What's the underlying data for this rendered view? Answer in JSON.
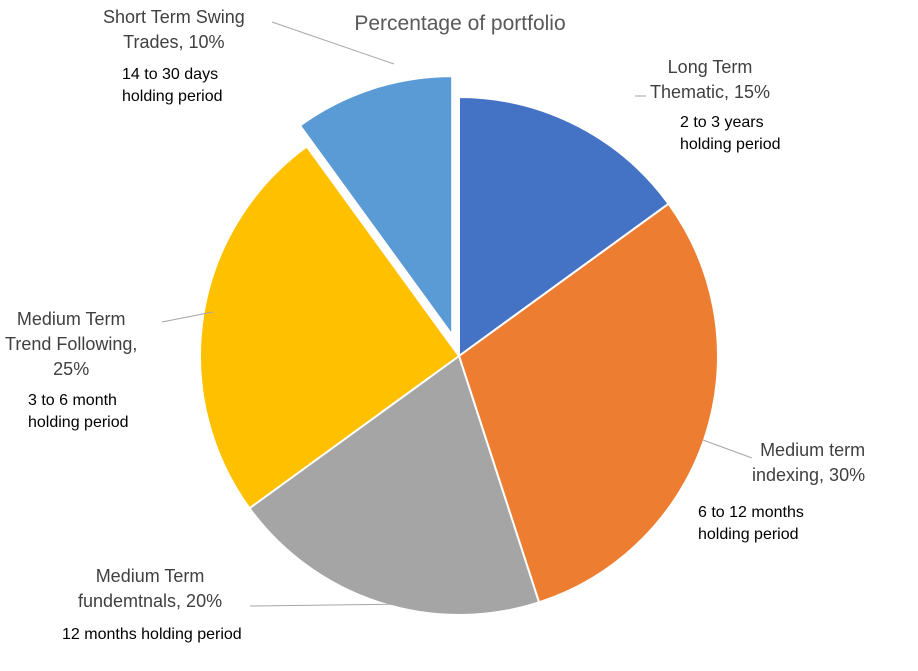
{
  "chart_data": {
    "type": "pie",
    "title": "Percentage of portfolio",
    "slices": [
      {
        "name": "Long Term Thematic",
        "value": 15,
        "value_label": "15%",
        "color": "#4472C4",
        "label_lines": [
          "Long Term",
          "Thematic, 15%"
        ],
        "note_lines": [
          "2 to 3 years",
          "holding period"
        ]
      },
      {
        "name": "Medium term indexing",
        "value": 30,
        "value_label": "30%",
        "color": "#ED7D31",
        "label_lines": [
          "Medium term",
          "indexing, 30%"
        ],
        "note_lines": [
          "6 to 12 months",
          "holding period"
        ]
      },
      {
        "name": "Medium Term fundemtnals",
        "value": 20,
        "value_label": "20%",
        "color": "#A5A5A5",
        "label_lines": [
          "Medium Term",
          "fundemtnals, 20%"
        ],
        "note_lines": [
          "12 months holding period"
        ]
      },
      {
        "name": "Medium Term Trend Following",
        "value": 25,
        "value_label": "25%",
        "color": "#FFC000",
        "label_lines": [
          "Medium Term",
          "Trend Following,",
          "25%"
        ],
        "note_lines": [
          "3 to 6 month",
          "holding period"
        ]
      },
      {
        "name": "Short Term Swing Trades",
        "value": 10,
        "value_label": "10%",
        "color": "#5B9BD5",
        "exploded": true,
        "label_lines": [
          "Short Term Swing",
          "Trades, 10%"
        ],
        "note_lines": [
          "14 to 30 days",
          "holding period"
        ]
      }
    ]
  }
}
